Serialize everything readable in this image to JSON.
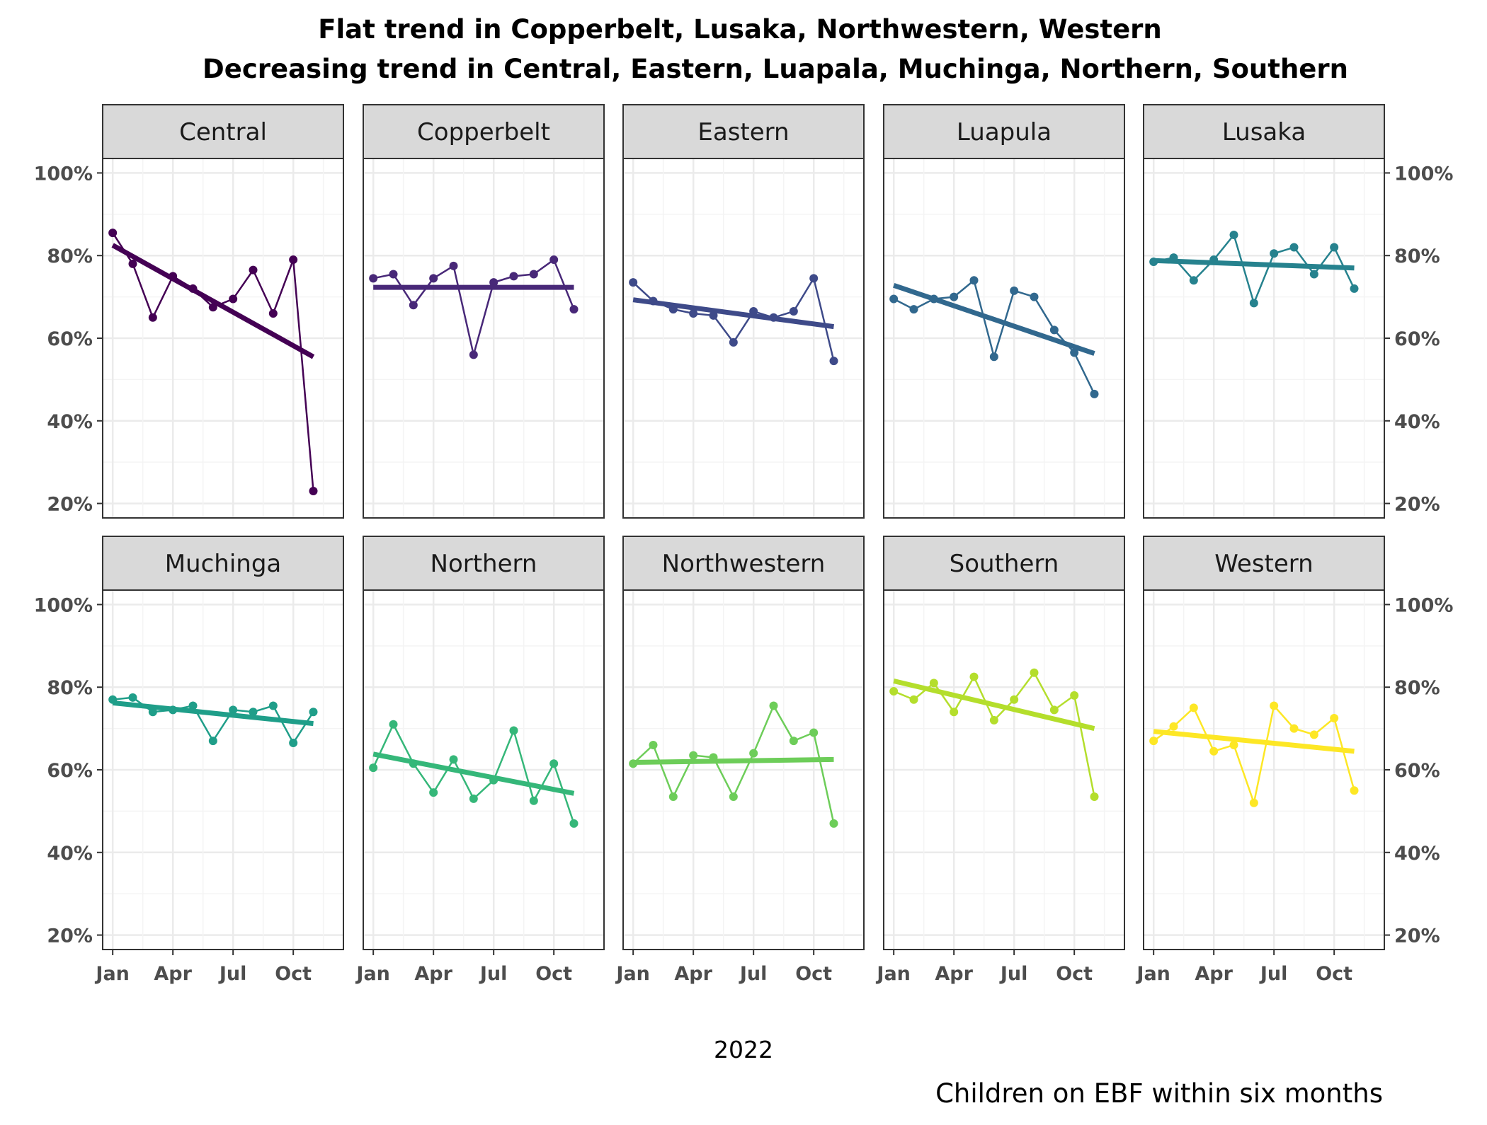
{
  "chart_data": {
    "type": "line",
    "facet": "small-multiples",
    "title_lines": [
      "Flat trend in Copperbelt, Lusaka, Northwestern, Western",
      "Decreasing trend in Central, Eastern, Luapala, Muchinga, Northern, Southern"
    ],
    "xlabel": "2022",
    "caption": "Children on EBF within six months",
    "x_months": [
      1,
      2,
      3,
      4,
      5,
      6,
      7,
      8,
      9,
      10,
      11,
      12
    ],
    "x_ticks": [
      {
        "month": 1,
        "label": "Jan"
      },
      {
        "month": 4,
        "label": "Apr"
      },
      {
        "month": 7,
        "label": "Jul"
      },
      {
        "month": 10,
        "label": "Oct"
      }
    ],
    "y_ticks": [
      {
        "value": 20,
        "label": "20%"
      },
      {
        "value": 40,
        "label": "40%"
      },
      {
        "value": 60,
        "label": "60%"
      },
      {
        "value": 80,
        "label": "80%"
      },
      {
        "value": 100,
        "label": "100%"
      }
    ],
    "xlim": [
      0.5,
      12.5
    ],
    "ylim": [
      16.5,
      103.5
    ],
    "grid": true,
    "series": [
      {
        "name": "Central",
        "color": "#440154",
        "values": [
          85.5,
          78,
          65,
          75,
          72,
          67.5,
          69.5,
          76.5,
          66,
          79,
          23
        ],
        "trend": [
          82.5,
          55.5
        ]
      },
      {
        "name": "Copperbelt",
        "color": "#482878",
        "values": [
          74.5,
          75.5,
          68,
          74.5,
          77.5,
          56,
          73.5,
          75,
          75.5,
          79,
          67
        ],
        "trend": [
          72.3,
          72.3
        ]
      },
      {
        "name": "Eastern",
        "color": "#3E4A89",
        "values": [
          73.5,
          69,
          67,
          66,
          65.5,
          59,
          66.5,
          65,
          66.5,
          74.5,
          54.5
        ],
        "trend": [
          69.3,
          62.8
        ]
      },
      {
        "name": "Luapula",
        "color": "#31688E",
        "values": [
          69.5,
          67,
          69.5,
          70,
          74,
          55.5,
          71.5,
          70,
          62,
          56.5,
          46.5
        ],
        "trend": [
          72.8,
          56.3
        ]
      },
      {
        "name": "Lusaka",
        "color": "#26828E",
        "values": [
          78.5,
          79.5,
          74,
          79,
          85,
          68.5,
          80.5,
          82,
          75.5,
          82,
          72
        ],
        "trend": [
          78.8,
          77
        ]
      },
      {
        "name": "Muchinga",
        "color": "#1F9E89",
        "values": [
          77,
          77.5,
          74,
          74.5,
          75.5,
          67,
          74.5,
          74,
          75.5,
          66.5,
          74
        ],
        "trend": [
          76.2,
          71.2
        ]
      },
      {
        "name": "Northern",
        "color": "#35B779",
        "values": [
          60.5,
          71,
          61.5,
          54.5,
          62.5,
          53,
          57.5,
          69.5,
          52.5,
          61.5,
          47
        ],
        "trend": [
          63.8,
          54.3
        ]
      },
      {
        "name": "Northwestern",
        "color": "#6DCD59",
        "values": [
          61.5,
          66,
          53.5,
          63.5,
          63,
          53.5,
          64,
          75.5,
          67,
          69,
          47
        ],
        "trend": [
          61.8,
          62.5
        ]
      },
      {
        "name": "Southern",
        "color": "#B4DE2C",
        "values": [
          79,
          77,
          81,
          74,
          82.5,
          72,
          77,
          83.5,
          74.5,
          78,
          53.5
        ],
        "trend": [
          81.5,
          70
        ]
      },
      {
        "name": "Western",
        "color": "#FDE725",
        "values": [
          67,
          70.5,
          75,
          64.5,
          66,
          52,
          75.5,
          70,
          68.5,
          72.5,
          55
        ],
        "trend": [
          69.3,
          64.5
        ]
      }
    ]
  }
}
